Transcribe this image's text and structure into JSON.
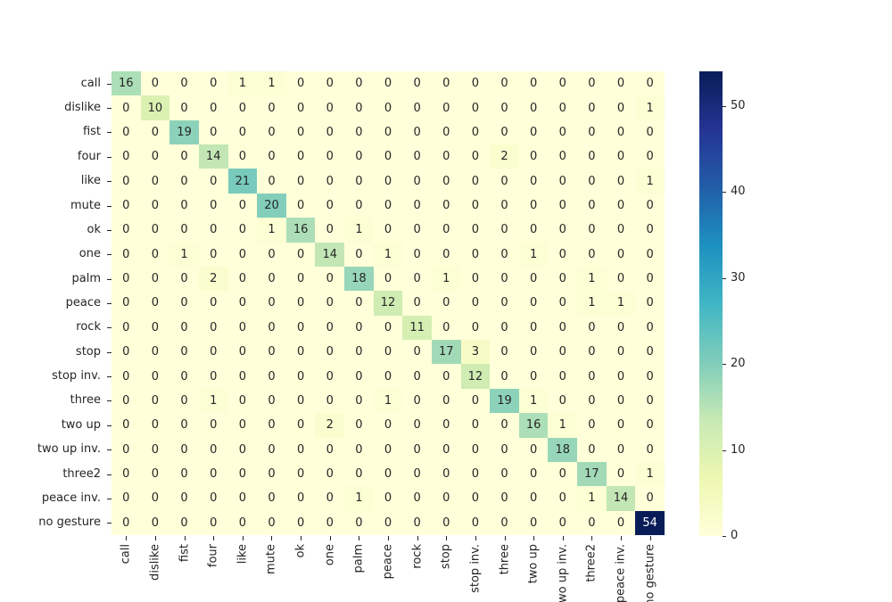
{
  "chart_data": {
    "type": "heatmap",
    "title": "",
    "xlabel": "",
    "ylabel": "",
    "categories": [
      "call",
      "dislike",
      "fist",
      "four",
      "like",
      "mute",
      "ok",
      "one",
      "palm",
      "peace",
      "rock",
      "stop",
      "stop inv.",
      "three",
      "two up",
      "two up inv.",
      "three2",
      "peace inv.",
      "no gesture"
    ],
    "matrix": [
      [
        16,
        0,
        0,
        0,
        1,
        1,
        0,
        0,
        0,
        0,
        0,
        0,
        0,
        0,
        0,
        0,
        0,
        0,
        0
      ],
      [
        0,
        10,
        0,
        0,
        0,
        0,
        0,
        0,
        0,
        0,
        0,
        0,
        0,
        0,
        0,
        0,
        0,
        0,
        1
      ],
      [
        0,
        0,
        19,
        0,
        0,
        0,
        0,
        0,
        0,
        0,
        0,
        0,
        0,
        0,
        0,
        0,
        0,
        0,
        0
      ],
      [
        0,
        0,
        0,
        14,
        0,
        0,
        0,
        0,
        0,
        0,
        0,
        0,
        0,
        2,
        0,
        0,
        0,
        0,
        0
      ],
      [
        0,
        0,
        0,
        0,
        21,
        0,
        0,
        0,
        0,
        0,
        0,
        0,
        0,
        0,
        0,
        0,
        0,
        0,
        1
      ],
      [
        0,
        0,
        0,
        0,
        0,
        20,
        0,
        0,
        0,
        0,
        0,
        0,
        0,
        0,
        0,
        0,
        0,
        0,
        0
      ],
      [
        0,
        0,
        0,
        0,
        0,
        1,
        16,
        0,
        1,
        0,
        0,
        0,
        0,
        0,
        0,
        0,
        0,
        0,
        0
      ],
      [
        0,
        0,
        1,
        0,
        0,
        0,
        0,
        14,
        0,
        1,
        0,
        0,
        0,
        0,
        1,
        0,
        0,
        0,
        0
      ],
      [
        0,
        0,
        0,
        2,
        0,
        0,
        0,
        0,
        18,
        0,
        0,
        1,
        0,
        0,
        0,
        0,
        1,
        0,
        0
      ],
      [
        0,
        0,
        0,
        0,
        0,
        0,
        0,
        0,
        0,
        12,
        0,
        0,
        0,
        0,
        0,
        0,
        1,
        1,
        0
      ],
      [
        0,
        0,
        0,
        0,
        0,
        0,
        0,
        0,
        0,
        0,
        11,
        0,
        0,
        0,
        0,
        0,
        0,
        0,
        0
      ],
      [
        0,
        0,
        0,
        0,
        0,
        0,
        0,
        0,
        0,
        0,
        0,
        17,
        3,
        0,
        0,
        0,
        0,
        0,
        0
      ],
      [
        0,
        0,
        0,
        0,
        0,
        0,
        0,
        0,
        0,
        0,
        0,
        0,
        12,
        0,
        0,
        0,
        0,
        0,
        0
      ],
      [
        0,
        0,
        0,
        1,
        0,
        0,
        0,
        0,
        0,
        1,
        0,
        0,
        0,
        19,
        1,
        0,
        0,
        0,
        0
      ],
      [
        0,
        0,
        0,
        0,
        0,
        0,
        0,
        2,
        0,
        0,
        0,
        0,
        0,
        0,
        16,
        1,
        0,
        0,
        0
      ],
      [
        0,
        0,
        0,
        0,
        0,
        0,
        0,
        0,
        0,
        0,
        0,
        0,
        0,
        0,
        0,
        18,
        0,
        0,
        0
      ],
      [
        0,
        0,
        0,
        0,
        0,
        0,
        0,
        0,
        0,
        0,
        0,
        0,
        0,
        0,
        0,
        0,
        17,
        0,
        1
      ],
      [
        0,
        0,
        0,
        0,
        0,
        0,
        0,
        0,
        1,
        0,
        0,
        0,
        0,
        0,
        0,
        0,
        1,
        14,
        0
      ],
      [
        0,
        0,
        0,
        0,
        0,
        0,
        0,
        0,
        0,
        0,
        0,
        0,
        0,
        0,
        0,
        0,
        0,
        0,
        54
      ]
    ],
    "vmin": 0,
    "vmax": 54,
    "colormap": "YlGnBu",
    "colormap_stops": [
      "#ffffd9",
      "#edf8b1",
      "#c7e9b4",
      "#7fcdbb",
      "#41b6c4",
      "#1d91c0",
      "#225ea8",
      "#253494",
      "#081d58"
    ],
    "colorbar_ticks": [
      0,
      10,
      20,
      30,
      40,
      50
    ],
    "legend_position": "right",
    "grid": false
  },
  "colors": {
    "background": "#ffffff",
    "tick": "#262626",
    "annotation_dark": "#262626",
    "annotation_light": "#ffffff"
  }
}
